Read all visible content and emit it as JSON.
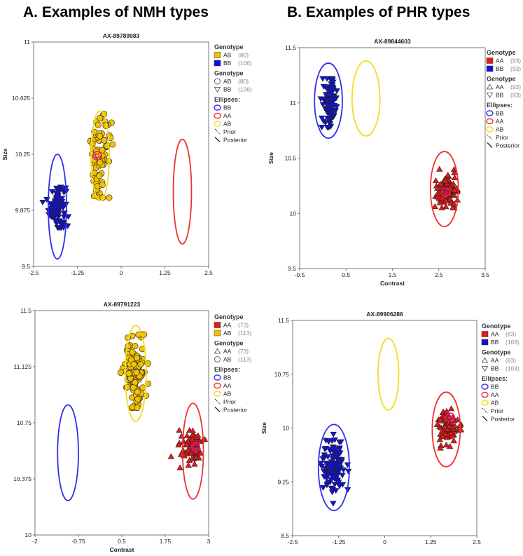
{
  "figure": {
    "section_a_title": "A. Examples of NMH types",
    "section_b_title": "B. Examples of PHR types"
  },
  "colors": {
    "BB": "#1010dd",
    "AA": "#e81818",
    "AB": "#f2c200",
    "ellipse_BB": "#2f2ff0",
    "ellipse_AA": "#f03030",
    "ellipse_AB": "#f5dc20",
    "posterior": "#e8187a"
  },
  "chart_data": [
    {
      "type": "scatter",
      "id": "p1",
      "title": "AX-89789983",
      "xlabel": "",
      "ylabel": "Size",
      "xlim": [
        -2.5,
        2.5
      ],
      "ylim": [
        9.5,
        11
      ],
      "xticks": [
        -2.5,
        -1.25,
        0,
        1.25,
        2.5
      ],
      "xtick_labels": [
        "-2.5",
        "-1.25",
        "0",
        "1.25",
        "2.5"
      ],
      "yticks": [
        9.5,
        9.875,
        10.25,
        10.625,
        11
      ],
      "ytick_labels": [
        "9.5",
        "9.875",
        "10.25",
        "10.625",
        "11"
      ],
      "legend": {
        "genotype_heading": "Genotype",
        "genotype": [
          {
            "label": "AB",
            "count": "(80)",
            "color_key": "AB"
          },
          {
            "label": "BB",
            "count": "(106)",
            "color_key": "BB"
          }
        ],
        "shape_heading": "Genotype",
        "shapes": [
          {
            "label": "AB",
            "count": "(80)",
            "shape": "circle"
          },
          {
            "label": "BB",
            "count": "(106)",
            "shape": "tri-down"
          }
        ],
        "ellipses_heading": "Ellipses:",
        "ellipses": [
          {
            "label": "BB",
            "color_key": "ellipse_BB"
          },
          {
            "label": "AA",
            "color_key": "ellipse_AA"
          },
          {
            "label": "AB",
            "color_key": "ellipse_AB"
          }
        ],
        "prior_label": "Prior",
        "posterior_label": "Posterior"
      },
      "clusters": [
        {
          "genotype": "BB",
          "shape": "tri-down",
          "n": 106,
          "center": [
            -1.82,
            9.9
          ],
          "spread": [
            0.12,
            0.08
          ],
          "range_y": [
            9.76,
            10.05
          ]
        },
        {
          "genotype": "AB",
          "shape": "circle",
          "n": 80,
          "center": [
            -0.6,
            10.24
          ],
          "spread": [
            0.14,
            0.14
          ],
          "range_y": [
            9.96,
            10.52
          ]
        }
      ],
      "ellipses": [
        {
          "genotype": "BB",
          "center": [
            -1.82,
            9.9
          ],
          "rx": 0.26,
          "ry": 0.35
        },
        {
          "genotype": "AB",
          "center": [
            -0.6,
            10.24
          ],
          "rx": 0.26,
          "ry": 0.3
        },
        {
          "genotype": "AA",
          "center": [
            1.75,
            10.0
          ],
          "rx": 0.26,
          "ry": 0.35
        }
      ],
      "posterior_marker": [
        -0.68,
        10.24
      ]
    },
    {
      "type": "scatter",
      "id": "p2",
      "title": "AX-89844603",
      "xlabel": "Contrast",
      "ylabel": "Size",
      "xlim": [
        -0.5,
        3.5
      ],
      "ylim": [
        9.5,
        11.5
      ],
      "xticks": [
        -0.5,
        0.5,
        1.5,
        2.5,
        3.5
      ],
      "xtick_labels": [
        "-0.5",
        "0.5",
        "1.5",
        "2.5",
        "3.5"
      ],
      "yticks": [
        9.5,
        10,
        10.5,
        11,
        11.5
      ],
      "ytick_labels": [
        "9.5",
        "10",
        "10.5",
        "11",
        "11.5"
      ],
      "legend": {
        "genotype_heading": "Genotype",
        "genotype": [
          {
            "label": "AA",
            "count": "(93)",
            "color_key": "AA"
          },
          {
            "label": "BB",
            "count": "(93)",
            "color_key": "BB"
          }
        ],
        "shape_heading": "Genotype",
        "shapes": [
          {
            "label": "AA",
            "count": "(93)",
            "shape": "tri-up"
          },
          {
            "label": "BB",
            "count": "(93)",
            "shape": "tri-down"
          }
        ],
        "ellipses_heading": "Ellipses:",
        "ellipses": [
          {
            "label": "BB",
            "color_key": "ellipse_BB"
          },
          {
            "label": "AA",
            "color_key": "ellipse_AA"
          },
          {
            "label": "AB",
            "color_key": "ellipse_AB"
          }
        ],
        "prior_label": "Prior",
        "posterior_label": "Posterior"
      },
      "clusters": [
        {
          "genotype": "BB",
          "shape": "tri-down",
          "n": 93,
          "center": [
            0.15,
            11.0
          ],
          "spread": [
            0.08,
            0.12
          ],
          "range_y": [
            10.78,
            11.22
          ]
        },
        {
          "genotype": "AA",
          "shape": "tri-up",
          "n": 93,
          "center": [
            2.65,
            10.22
          ],
          "spread": [
            0.12,
            0.08
          ],
          "range_y": [
            10.05,
            10.4
          ]
        }
      ],
      "ellipses": [
        {
          "genotype": "BB",
          "center": [
            0.12,
            11.02
          ],
          "rx": 0.3,
          "ry": 0.34
        },
        {
          "genotype": "AB",
          "center": [
            0.93,
            11.04
          ],
          "rx": 0.3,
          "ry": 0.34
        },
        {
          "genotype": "AA",
          "center": [
            2.62,
            10.22
          ],
          "rx": 0.3,
          "ry": 0.34
        }
      ],
      "posterior_marker": [
        2.65,
        10.19
      ]
    },
    {
      "type": "scatter",
      "id": "p3",
      "title": "AX-89791223",
      "xlabel": "Contrast",
      "ylabel": "",
      "xlim": [
        -2,
        3
      ],
      "ylim": [
        10,
        11.5
      ],
      "xticks": [
        -2,
        -0.75,
        0.5,
        1.75,
        3
      ],
      "xtick_labels": [
        "-2",
        "-0.75",
        "0.5",
        "1.75",
        "3"
      ],
      "yticks": [
        10,
        10.375,
        10.75,
        11.125,
        11.5
      ],
      "ytick_labels": [
        "10",
        "10.375",
        "10.75",
        "11.125",
        "11.5"
      ],
      "legend": {
        "genotype_heading": "Genotype",
        "genotype": [
          {
            "label": "AA",
            "count": "(73)",
            "color_key": "AA"
          },
          {
            "label": "AB",
            "count": "(113)",
            "color_key": "AB"
          }
        ],
        "shape_heading": "Genotype",
        "shapes": [
          {
            "label": "AA",
            "count": "(73)",
            "shape": "tri-up"
          },
          {
            "label": "AB",
            "count": "(113)",
            "shape": "circle"
          }
        ],
        "ellipses_heading": "Ellipses:",
        "ellipses": [
          {
            "label": "BB",
            "color_key": "ellipse_BB"
          },
          {
            "label": "AA",
            "color_key": "ellipse_AA"
          },
          {
            "label": "AB",
            "color_key": "ellipse_AB"
          }
        ],
        "prior_label": "Prior",
        "posterior_label": "Posterior"
      },
      "clusters": [
        {
          "genotype": "AB",
          "shape": "circle",
          "n": 113,
          "center": [
            0.9,
            11.08
          ],
          "spread": [
            0.16,
            0.13
          ],
          "range_y": [
            10.85,
            11.34
          ]
        },
        {
          "genotype": "AA",
          "shape": "tri-up",
          "n": 73,
          "center": [
            2.5,
            10.58
          ],
          "spread": [
            0.17,
            0.06
          ],
          "range_y": [
            10.45,
            10.7
          ]
        }
      ],
      "ellipses": [
        {
          "genotype": "BB",
          "center": [
            -1.05,
            10.55
          ],
          "rx": 0.3,
          "ry": 0.32
        },
        {
          "genotype": "AB",
          "center": [
            0.9,
            11.08
          ],
          "rx": 0.3,
          "ry": 0.32
        },
        {
          "genotype": "AA",
          "center": [
            2.55,
            10.56
          ],
          "rx": 0.3,
          "ry": 0.32
        }
      ],
      "posterior_marker": [
        2.62,
        10.59
      ]
    },
    {
      "type": "scatter",
      "id": "p4",
      "title": "AX-89906286",
      "xlabel": "",
      "ylabel": "Size",
      "xlim": [
        -2.5,
        2.5
      ],
      "ylim": [
        8.5,
        11.5
      ],
      "xticks": [
        -2.5,
        -1.25,
        0,
        1.25,
        2.5
      ],
      "xtick_labels": [
        "-2.5",
        "-1.25",
        "0",
        "1.25",
        "2.5"
      ],
      "yticks": [
        8.5,
        9.25,
        10,
        10.75,
        11.5
      ],
      "ytick_labels": [
        "8.5",
        "9.25",
        "10",
        "10.75",
        "11.5"
      ],
      "legend": {
        "genotype_heading": "Genotype",
        "genotype": [
          {
            "label": "AA",
            "count": "(83)",
            "color_key": "AA"
          },
          {
            "label": "BB",
            "count": "(103)",
            "color_key": "BB"
          }
        ],
        "shape_heading": "Genotype",
        "shapes": [
          {
            "label": "AA",
            "count": "(83)",
            "shape": "tri-up"
          },
          {
            "label": "BB",
            "count": "(103)",
            "shape": "tri-down"
          }
        ],
        "ellipses_heading": "Ellipses:",
        "ellipses": [
          {
            "label": "BB",
            "color_key": "ellipse_BB"
          },
          {
            "label": "AA",
            "color_key": "ellipse_AA"
          },
          {
            "label": "AB",
            "color_key": "ellipse_AB"
          }
        ],
        "prior_label": "Prior",
        "posterior_label": "Posterior"
      },
      "clusters": [
        {
          "genotype": "BB",
          "shape": "tri-down",
          "n": 103,
          "center": [
            -1.38,
            9.45
          ],
          "spread": [
            0.16,
            0.22
          ],
          "range_y": [
            8.95,
            9.95
          ]
        },
        {
          "genotype": "AA",
          "shape": "tri-up",
          "n": 83,
          "center": [
            1.68,
            10.0
          ],
          "spread": [
            0.14,
            0.13
          ],
          "range_y": [
            9.7,
            10.32
          ]
        }
      ],
      "ellipses": [
        {
          "genotype": "BB",
          "center": [
            -1.38,
            9.45
          ],
          "rx": 0.42,
          "ry": 0.6
        },
        {
          "genotype": "AB",
          "center": [
            0.1,
            10.75
          ],
          "rx": 0.28,
          "ry": 0.5
        },
        {
          "genotype": "AA",
          "center": [
            1.67,
            9.98
          ],
          "rx": 0.38,
          "ry": 0.52
        }
      ],
      "posterior_marker": [
        1.78,
        10.15
      ]
    }
  ]
}
